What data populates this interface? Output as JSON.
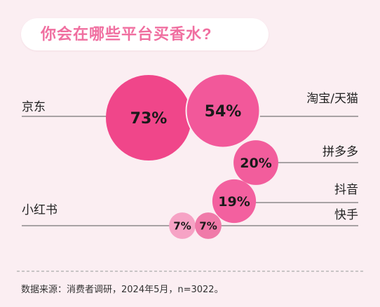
{
  "header": {
    "title": "你会在哪些平台买香水?"
  },
  "chart_data": {
    "type": "bubble",
    "title": "你会在哪些平台买香水?",
    "unit": "%",
    "categories": [
      "京东",
      "淘宝/天猫",
      "拼多多",
      "抖音",
      "小红书",
      "快手"
    ],
    "values": [
      73,
      54,
      20,
      19,
      7,
      7
    ],
    "value_labels": [
      "73%",
      "54%",
      "20%",
      "19%",
      "7%",
      "7%"
    ],
    "colors": [
      "#f0468a",
      "#f2589a",
      "#f25d9c",
      "#f3609f",
      "#f6a3c5",
      "#f07aa9"
    ]
  },
  "footer": {
    "source": "数据来源：消费者调研，2024年5月，n=3022。"
  }
}
